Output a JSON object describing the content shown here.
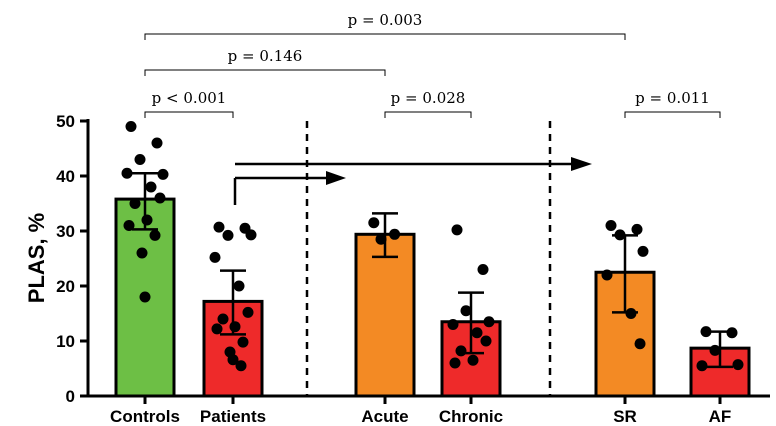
{
  "chart_data": {
    "type": "bar",
    "title": "",
    "xlabel": "",
    "ylabel": "PLAS, %",
    "ylim": [
      0,
      50
    ],
    "yticks": [
      0,
      10,
      20,
      30,
      40,
      50
    ],
    "categories": [
      "Controls",
      "Patients",
      "Acute",
      "Chronic",
      "SR",
      "AF"
    ],
    "values": [
      35.8,
      17.2,
      29.4,
      13.5,
      22.5,
      8.7
    ],
    "error_low": [
      30.3,
      11.2,
      25.3,
      7.8,
      15.2,
      5.3
    ],
    "error_high": [
      40.5,
      22.8,
      33.2,
      18.8,
      29.2,
      11.7
    ],
    "colors": [
      "#6dbf45",
      "#ee2a2a",
      "#f38a24",
      "#ee2a2a",
      "#f38a24",
      "#ee2a2a"
    ],
    "points": [
      [
        49,
        46,
        43,
        40.3,
        40.5,
        38,
        36,
        35,
        32,
        31,
        29.2,
        26,
        18
      ],
      [
        30.7,
        30.5,
        29.2,
        29.3,
        25.2,
        20,
        15.2,
        14,
        12.6,
        12.2,
        9.8,
        8,
        6.6,
        5.5
      ],
      [
        31.5,
        29.4,
        28.5
      ],
      [
        30.2,
        23,
        15.5,
        13.5,
        13,
        11.5,
        10,
        8.2,
        6.5,
        6
      ],
      [
        31,
        30.3,
        29.3,
        26.3,
        22,
        15,
        9.5
      ],
      [
        11.7,
        11.5,
        8.3,
        5.7,
        5.5
      ]
    ],
    "comparisons": [
      {
        "from": "Controls",
        "to": "Patients",
        "label": "p < 0.001"
      },
      {
        "from": "Controls",
        "to": "Acute",
        "label": "p = 0.146"
      },
      {
        "from": "Controls",
        "to": "SR",
        "label": "p = 0.003"
      },
      {
        "from": "Acute",
        "to": "Chronic",
        "label": "p = 0.028"
      },
      {
        "from": "SR",
        "to": "AF",
        "label": "p = 0.011"
      }
    ],
    "grid": false,
    "legend": "none"
  }
}
